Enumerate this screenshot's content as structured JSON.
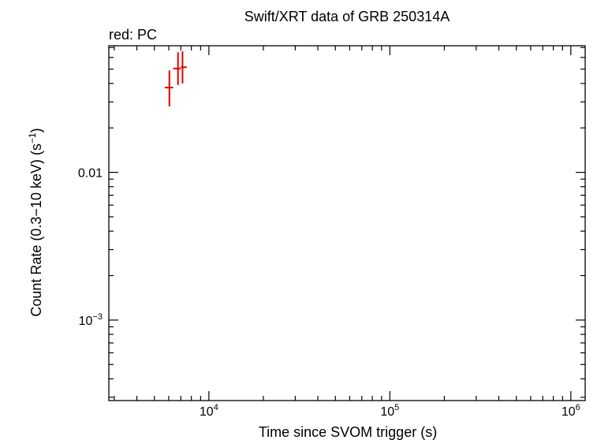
{
  "chart_data": {
    "type": "scatter",
    "title": "Swift/XRT data of GRB 250314A",
    "subtitle": "red: PC",
    "xlabel": "Time since SVOM trigger (s)",
    "ylabel_main": "Count Rate (0.3−10 keV) (s",
    "ylabel_sup": "−1",
    "ylabel_end": ")",
    "x_scale": "log",
    "y_scale": "log",
    "xlim": [
      2800,
      1200000
    ],
    "ylim": [
      0.000285,
      0.072
    ],
    "grid": false,
    "x_ticks": [
      {
        "value": 10000,
        "base": "10",
        "exp": "4"
      },
      {
        "value": 100000,
        "base": "10",
        "exp": "5"
      },
      {
        "value": 1000000,
        "base": "10",
        "exp": "6"
      }
    ],
    "y_ticks": [
      {
        "value": 0.01,
        "base": "0.01",
        "exp": ""
      },
      {
        "value": 0.001,
        "base": "10",
        "exp": "−3"
      }
    ],
    "series": [
      {
        "color": "#e00000",
        "points": [
          {
            "x": 6050,
            "xerr": [
              5700,
              6350
            ],
            "y": 0.0375,
            "yerr": [
              0.028,
              0.049
            ]
          },
          {
            "x": 6750,
            "xerr": [
              6350,
              7000
            ],
            "y": 0.0505,
            "yerr": [
              0.039,
              0.065
            ]
          },
          {
            "x": 7150,
            "xerr": [
              7000,
              7550
            ],
            "y": 0.0515,
            "yerr": [
              0.04,
              0.066
            ]
          }
        ]
      }
    ]
  }
}
